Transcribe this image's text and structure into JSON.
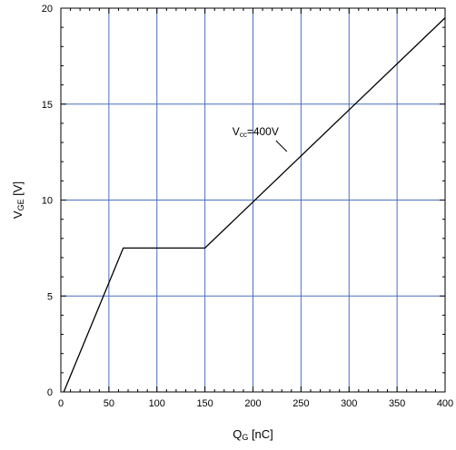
{
  "chart_data": {
    "type": "line",
    "title": "",
    "xlabel": {
      "main": "Q",
      "sub": "G",
      "unit": " [nC]"
    },
    "ylabel": {
      "main": "V",
      "sub": "GE",
      "unit": " [V]"
    },
    "xlim": [
      0,
      400
    ],
    "ylim": [
      0,
      20
    ],
    "xticks": [
      0,
      50,
      100,
      150,
      200,
      250,
      300,
      350,
      400
    ],
    "yticks": [
      0,
      5,
      10,
      15,
      20
    ],
    "x_minor_step": 10,
    "y_minor_step": 1,
    "grid": true,
    "series": [
      {
        "x": [
          3,
          65,
          150,
          400
        ],
        "y": [
          0,
          7.5,
          7.5,
          19.5
        ]
      }
    ],
    "annotations": [
      {
        "text_main": "V",
        "text_sub": "cc",
        "text_rest": "=400V",
        "x": 240,
        "y": 12.2
      }
    ],
    "colors": {
      "grid": "#4a6fc0",
      "line": "#000000",
      "axes": "#000000"
    }
  }
}
